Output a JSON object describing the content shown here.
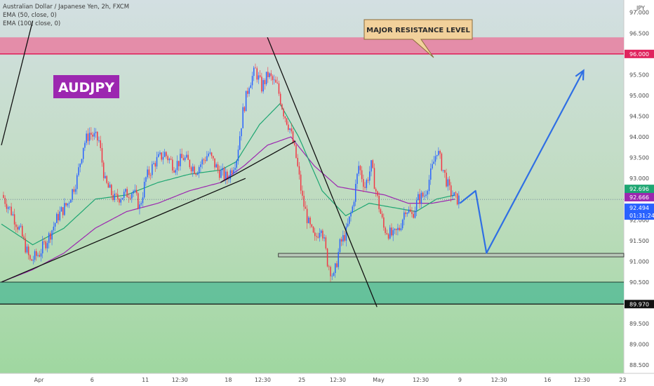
{
  "header": {
    "symbol_line": "Australian Dollar / Japanese Yen, 2h, FXCM",
    "indicator_1": "EMA (50, close, 0)",
    "indicator_2": "EMA (100, close, 0)",
    "currency": "JPY"
  },
  "annotations": {
    "pair_label": "AUDJPY",
    "resistance_label": "MAJOR RESISTANCE LEVEL"
  },
  "price_tags": {
    "resistance": "96.000",
    "ema50": "92.696",
    "ema100": "92.666",
    "last_price": "92.494",
    "countdown": "01:31:24",
    "support": "89.970"
  },
  "colors": {
    "bullish": "#2962ff",
    "bearish": "#f23645",
    "ema50": "#1ea672",
    "ema100": "#9c27b0",
    "resistance_zone": "#e87fa0",
    "support_zone": "#4db894",
    "projection": "#2f6fe4",
    "label_bg": "#9c27b0",
    "callout_bg": "#f2d19b"
  },
  "chart_data": {
    "type": "candlestick",
    "title": "",
    "ylim": [
      88.3,
      97.3
    ],
    "yticks": [
      "97.000",
      "96.500",
      "95.500",
      "95.000",
      "94.500",
      "94.000",
      "93.500",
      "93.000",
      "92.500",
      "92.000",
      "91.500",
      "91.000",
      "90.500",
      "89.500",
      "89.000",
      "88.500"
    ],
    "yticks_values": [
      97.0,
      96.5,
      95.5,
      95.0,
      94.5,
      94.0,
      93.5,
      93.0,
      92.5,
      92.0,
      91.5,
      91.0,
      90.5,
      89.5,
      89.0,
      88.5
    ],
    "xticks": [
      "Apr",
      "6",
      "11",
      "12:30",
      "18",
      "12:30",
      "25",
      "12:30",
      "May",
      "12:30",
      "9",
      "12:30",
      "16",
      "12:30",
      "23"
    ],
    "xticks_index": [
      24,
      58,
      92,
      114,
      145,
      167,
      192,
      215,
      241,
      268,
      293,
      318,
      349,
      371,
      397
    ],
    "bars_visible": 292,
    "resistance_zone": [
      96.0,
      96.4
    ],
    "support_zone": [
      89.97,
      90.5
    ],
    "support_line": 91.15,
    "last_price": 92.494,
    "key_points": [
      {
        "i": 0,
        "p": 92.6
      },
      {
        "i": 6,
        "p": 92.2
      },
      {
        "i": 12,
        "p": 91.7
      },
      {
        "i": 18,
        "p": 91.0
      },
      {
        "i": 24,
        "p": 91.2
      },
      {
        "i": 30,
        "p": 91.6
      },
      {
        "i": 36,
        "p": 92.1
      },
      {
        "i": 42,
        "p": 92.4
      },
      {
        "i": 48,
        "p": 93.0
      },
      {
        "i": 52,
        "p": 93.8
      },
      {
        "i": 56,
        "p": 94.1
      },
      {
        "i": 62,
        "p": 93.9
      },
      {
        "i": 66,
        "p": 92.9
      },
      {
        "i": 72,
        "p": 92.5
      },
      {
        "i": 78,
        "p": 92.6
      },
      {
        "i": 84,
        "p": 92.7
      },
      {
        "i": 88,
        "p": 92.3
      },
      {
        "i": 92,
        "p": 93.0
      },
      {
        "i": 98,
        "p": 93.4
      },
      {
        "i": 104,
        "p": 93.6
      },
      {
        "i": 110,
        "p": 93.3
      },
      {
        "i": 116,
        "p": 93.5
      },
      {
        "i": 124,
        "p": 93.2
      },
      {
        "i": 132,
        "p": 93.6
      },
      {
        "i": 138,
        "p": 93.2
      },
      {
        "i": 144,
        "p": 93.0
      },
      {
        "i": 150,
        "p": 93.5
      },
      {
        "i": 154,
        "p": 94.6
      },
      {
        "i": 158,
        "p": 95.3
      },
      {
        "i": 162,
        "p": 95.6
      },
      {
        "i": 166,
        "p": 95.2
      },
      {
        "i": 170,
        "p": 95.5
      },
      {
        "i": 176,
        "p": 95.2
      },
      {
        "i": 180,
        "p": 94.6
      },
      {
        "i": 184,
        "p": 94.2
      },
      {
        "i": 188,
        "p": 93.5
      },
      {
        "i": 192,
        "p": 92.5
      },
      {
        "i": 196,
        "p": 91.9
      },
      {
        "i": 200,
        "p": 91.5
      },
      {
        "i": 204,
        "p": 91.9
      },
      {
        "i": 208,
        "p": 91.0
      },
      {
        "i": 212,
        "p": 90.6
      },
      {
        "i": 216,
        "p": 91.4
      },
      {
        "i": 220,
        "p": 91.7
      },
      {
        "i": 224,
        "p": 92.3
      },
      {
        "i": 228,
        "p": 93.3
      },
      {
        "i": 232,
        "p": 92.8
      },
      {
        "i": 236,
        "p": 93.3
      },
      {
        "i": 240,
        "p": 92.5
      },
      {
        "i": 244,
        "p": 91.8
      },
      {
        "i": 250,
        "p": 91.6
      },
      {
        "i": 254,
        "p": 91.8
      },
      {
        "i": 258,
        "p": 92.3
      },
      {
        "i": 262,
        "p": 92.1
      },
      {
        "i": 266,
        "p": 92.5
      },
      {
        "i": 270,
        "p": 92.6
      },
      {
        "i": 274,
        "p": 93.1
      },
      {
        "i": 278,
        "p": 93.7
      },
      {
        "i": 282,
        "p": 93.2
      },
      {
        "i": 286,
        "p": 92.7
      },
      {
        "i": 290,
        "p": 92.5
      }
    ],
    "ema50": [
      {
        "i": 0,
        "p": 91.9
      },
      {
        "i": 20,
        "p": 91.4
      },
      {
        "i": 40,
        "p": 91.8
      },
      {
        "i": 60,
        "p": 92.5
      },
      {
        "i": 80,
        "p": 92.6
      },
      {
        "i": 100,
        "p": 92.9
      },
      {
        "i": 120,
        "p": 93.1
      },
      {
        "i": 140,
        "p": 93.2
      },
      {
        "i": 150,
        "p": 93.4
      },
      {
        "i": 165,
        "p": 94.3
      },
      {
        "i": 178,
        "p": 94.8
      },
      {
        "i": 190,
        "p": 94.0
      },
      {
        "i": 205,
        "p": 92.7
      },
      {
        "i": 220,
        "p": 92.1
      },
      {
        "i": 235,
        "p": 92.4
      },
      {
        "i": 250,
        "p": 92.3
      },
      {
        "i": 265,
        "p": 92.2
      },
      {
        "i": 278,
        "p": 92.5
      },
      {
        "i": 290,
        "p": 92.6
      }
    ],
    "ema100": [
      {
        "i": 0,
        "p": 90.5
      },
      {
        "i": 20,
        "p": 90.8
      },
      {
        "i": 40,
        "p": 91.2
      },
      {
        "i": 60,
        "p": 91.8
      },
      {
        "i": 80,
        "p": 92.2
      },
      {
        "i": 100,
        "p": 92.4
      },
      {
        "i": 120,
        "p": 92.7
      },
      {
        "i": 140,
        "p": 92.9
      },
      {
        "i": 155,
        "p": 93.3
      },
      {
        "i": 170,
        "p": 93.8
      },
      {
        "i": 185,
        "p": 94.0
      },
      {
        "i": 200,
        "p": 93.3
      },
      {
        "i": 215,
        "p": 92.8
      },
      {
        "i": 230,
        "p": 92.7
      },
      {
        "i": 245,
        "p": 92.6
      },
      {
        "i": 260,
        "p": 92.4
      },
      {
        "i": 275,
        "p": 92.4
      },
      {
        "i": 290,
        "p": 92.5
      }
    ],
    "trendlines": [
      {
        "a": {
          "i": 0,
          "p": 93.8
        },
        "b": {
          "i": 20,
          "p": 96.8
        }
      },
      {
        "a": {
          "i": 0,
          "p": 90.5
        },
        "b": {
          "i": 156,
          "p": 93.0
        }
      },
      {
        "a": {
          "i": 140,
          "p": 92.9
        },
        "b": {
          "i": 188,
          "p": 93.9
        }
      },
      {
        "a": {
          "i": 170,
          "p": 96.4
        },
        "b": {
          "i": 240,
          "p": 89.9
        }
      }
    ],
    "projection": [
      {
        "i": 293,
        "p": 92.4
      },
      {
        "i": 303,
        "p": 92.7
      },
      {
        "i": 310,
        "p": 91.2
      },
      {
        "i": 372,
        "p": 95.6
      }
    ]
  }
}
